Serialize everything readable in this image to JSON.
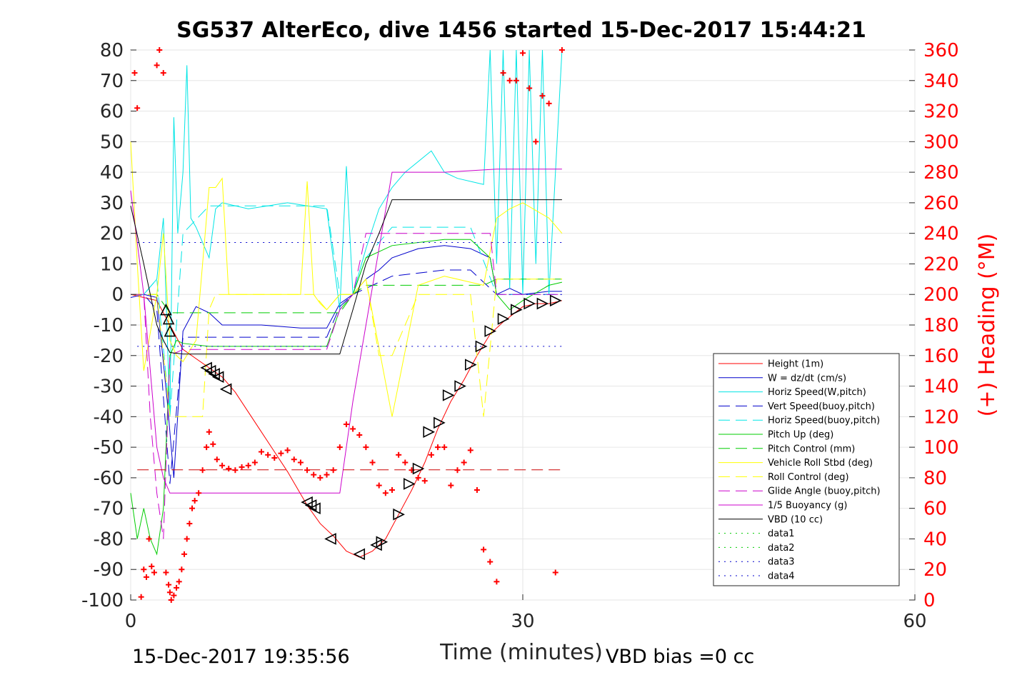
{
  "chart_data": {
    "type": "line",
    "title": "SG537 AlterEco, dive 1456 started 15-Dec-2017 15:44:21",
    "xlabel": "Time (minutes)",
    "ylabel_right": "(+) Heading (°M)",
    "xlim": [
      0,
      60
    ],
    "ylim": [
      -100,
      80
    ],
    "ylim_right": [
      0,
      360
    ],
    "x_ticks": [
      "0",
      "30",
      "60"
    ],
    "y_ticks": [
      "80",
      "70",
      "60",
      "50",
      "40",
      "30",
      "20",
      "10",
      "0",
      "-10",
      "-20",
      "-30",
      "-40",
      "-50",
      "-60",
      "-70",
      "-80",
      "-90",
      "-100"
    ],
    "y_right_ticks": [
      "360",
      "340",
      "320",
      "300",
      "280",
      "260",
      "240",
      "220",
      "200",
      "180",
      "160",
      "140",
      "120",
      "100",
      "80",
      "60",
      "40",
      "20",
      "0"
    ],
    "grid": true,
    "legend_position": "bottom-right",
    "footer_left": "15-Dec-2017 19:35:56",
    "footer_right": "VBD bias =0 cc",
    "series": [
      {
        "name": "Height (1m)",
        "color": "#ff0000",
        "dash": "solid",
        "x": [
          0,
          1,
          2,
          3,
          4,
          5,
          6,
          7,
          8,
          10,
          12,
          13.5,
          14.5,
          15.5,
          16.5,
          17.5,
          18.5,
          19.5,
          20.5,
          21.5,
          22.5,
          23.5,
          24.5,
          25.5,
          26.5,
          27.5,
          28.5,
          30,
          31,
          32,
          33
        ],
        "y": [
          0,
          -1,
          -2,
          -10,
          -18,
          -21,
          -24,
          -27,
          -32,
          -45,
          -58,
          -69,
          -75,
          -79,
          -84,
          -86,
          -84,
          -80,
          -72,
          -64,
          -55,
          -44,
          -35,
          -28,
          -20,
          -13,
          -9,
          -4,
          -3,
          -3,
          -2
        ]
      },
      {
        "name": "W = dz/dt (cm/s)",
        "color": "#0000cc",
        "dash": "solid",
        "x": [
          0,
          1,
          2,
          2.8,
          3.3,
          4,
          5,
          6,
          7,
          10,
          13,
          15,
          16,
          17,
          18,
          19,
          20,
          22,
          24,
          26,
          27.5,
          28,
          29,
          30,
          32,
          33
        ],
        "y": [
          -1,
          0,
          -1,
          -35,
          -60,
          -12,
          -4,
          -6,
          -10,
          -10,
          -11,
          -11,
          -3,
          0,
          5,
          8,
          12,
          15,
          16,
          15,
          12,
          0,
          2,
          0,
          1,
          1
        ]
      },
      {
        "name": "Horiz Speed(W,pitch)",
        "color": "#00e5e5",
        "dash": "solid",
        "x": [
          0,
          1,
          2,
          2.5,
          3,
          3.3,
          3.6,
          4,
          4.3,
          4.6,
          5,
          6,
          6.5,
          7,
          9,
          12,
          15,
          16,
          16.5,
          17,
          18,
          19,
          20,
          21,
          23,
          24,
          25,
          27,
          27.5,
          28,
          28.5,
          29,
          29.5,
          30,
          30.5,
          31,
          31.5,
          32,
          33
        ],
        "y": [
          0,
          0,
          5,
          25,
          -40,
          58,
          20,
          40,
          75,
          25,
          22,
          12,
          28,
          30,
          28,
          30,
          28,
          -5,
          42,
          0,
          15,
          28,
          35,
          40,
          47,
          40,
          38,
          36,
          80,
          10,
          80,
          2,
          80,
          0,
          80,
          10,
          80,
          0,
          80
        ]
      },
      {
        "name": "Vert Speed(buoy,pitch)",
        "color": "#0000cc",
        "dash": "longdash",
        "x": [
          0,
          1,
          2,
          3,
          4,
          6,
          8,
          10,
          12,
          15,
          16,
          17,
          18,
          20,
          24,
          26,
          28,
          30,
          33
        ],
        "y": [
          0,
          0,
          -5,
          -62,
          -14,
          -14,
          -14,
          -14,
          -14,
          -14,
          -4,
          0,
          2,
          6,
          8,
          8,
          0,
          0,
          0
        ]
      },
      {
        "name": "Horiz Speed(buoy,pitch)",
        "color": "#00e5e5",
        "dash": "longdash",
        "x": [
          0,
          1,
          2,
          3,
          4,
          6,
          8,
          10,
          12,
          15,
          16,
          17,
          18,
          20,
          24,
          26,
          28,
          30,
          33
        ],
        "y": [
          0,
          0,
          5,
          -40,
          20,
          29,
          29,
          29,
          29,
          29,
          0,
          0,
          12,
          22,
          22,
          22,
          0,
          0,
          0
        ]
      },
      {
        "name": "Pitch Up (deg)",
        "color": "#00cc00",
        "dash": "solid",
        "x": [
          0,
          0.5,
          1,
          1.5,
          2,
          2.5,
          3,
          3.5,
          4,
          6,
          8,
          10,
          12,
          15,
          16,
          17,
          18,
          20,
          24,
          26,
          27.5,
          28,
          29,
          30,
          32,
          33
        ],
        "y": [
          -65,
          -80,
          -70,
          -80,
          -85,
          -70,
          -20,
          -15,
          -16,
          -17,
          -17,
          -17,
          -17,
          -17,
          -5,
          0,
          12,
          16,
          18,
          18,
          12,
          0,
          -5,
          -2,
          3,
          4
        ]
      },
      {
        "name": "Pitch Control (mm)",
        "color": "#00cc00",
        "dash": "longdash",
        "x": [
          0,
          2,
          2.5,
          3,
          6,
          15,
          16,
          17,
          18,
          20,
          27,
          28,
          33
        ],
        "y": [
          0,
          0,
          -3,
          -6,
          -6,
          -6,
          -6,
          0,
          3,
          3,
          3,
          5,
          5
        ]
      },
      {
        "name": "Vehicle Roll Stbd (deg)",
        "color": "#ffff00",
        "dash": "solid",
        "x": [
          0,
          0.5,
          1,
          2,
          2.5,
          3,
          3.5,
          4,
          5,
          6,
          6.5,
          7,
          7.5,
          8,
          10,
          13,
          13.5,
          14,
          14.5,
          15,
          16,
          17,
          18,
          20,
          22,
          24,
          26,
          27,
          28,
          29,
          30,
          32,
          33
        ],
        "y": [
          50,
          10,
          -25,
          0,
          20,
          -15,
          -20,
          -22,
          -15,
          35,
          35,
          38,
          0,
          0,
          0,
          0,
          37,
          0,
          -3,
          -5,
          0,
          0,
          5,
          -40,
          3,
          6,
          4,
          3,
          25,
          28,
          30,
          25,
          20
        ]
      },
      {
        "name": "Roll Control (deg)",
        "color": "#ffff00",
        "dash": "longdash",
        "x": [
          0,
          2,
          2.5,
          3,
          3.5,
          5,
          5.5,
          6,
          6.5,
          14,
          15,
          16,
          17,
          18,
          19,
          20,
          22,
          24,
          26,
          27,
          28,
          33
        ],
        "y": [
          0,
          0,
          -20,
          -40,
          -40,
          -40,
          -40,
          -5,
          0,
          0,
          -5,
          0,
          0,
          5,
          -20,
          -20,
          0,
          0,
          0,
          -40,
          5,
          5
        ]
      },
      {
        "name": "Glide Angle (buoy,pitch)",
        "color": "#cc00cc",
        "dash": "longdash",
        "x": [
          0,
          1,
          1.5,
          2,
          2.5,
          3,
          4,
          6,
          8,
          10,
          12,
          15,
          16,
          17,
          18,
          20,
          24,
          26,
          27.5,
          28,
          33
        ],
        "y": [
          0,
          0,
          -40,
          -65,
          -80,
          -20,
          -18,
          -18,
          -18,
          -18,
          -18,
          -18,
          -5,
          0,
          20,
          20,
          20,
          20,
          20,
          0,
          0
        ]
      },
      {
        "name": "1/5 Buoyancy (g)",
        "color": "#cc00cc",
        "dash": "solid",
        "x": [
          0,
          1,
          2,
          2.5,
          3,
          4,
          6,
          8,
          10,
          12,
          14,
          15,
          16,
          17,
          18,
          19,
          20,
          24,
          28,
          33
        ],
        "y": [
          34,
          0,
          -50,
          -60,
          -65,
          -65,
          -65,
          -65,
          -65,
          -65,
          -65,
          -65,
          -65,
          -35,
          -10,
          15,
          40,
          40,
          41,
          41
        ]
      },
      {
        "name": "VBD (10 cc)",
        "color": "#000000",
        "dash": "solid",
        "x": [
          0,
          1,
          2,
          2.5,
          3,
          4,
          6,
          8,
          10,
          12,
          14,
          15,
          16,
          17,
          18,
          19,
          20,
          22,
          24,
          28,
          33
        ],
        "y": [
          29,
          10,
          -10,
          -15,
          -19,
          -19.5,
          -19.5,
          -19.5,
          -19.5,
          -19.5,
          -19.5,
          -19.5,
          -19.5,
          -5,
          10,
          20,
          31,
          31,
          31,
          31,
          31
        ]
      },
      {
        "name": "data1",
        "color": "#00cc00",
        "dash": "dot",
        "x": [],
        "y": []
      },
      {
        "name": "data2",
        "color": "#00cc00",
        "dash": "dot",
        "x": [],
        "y": []
      },
      {
        "name": "data3",
        "color": "#0000cc",
        "dash": "dot",
        "x": [
          0.5,
          33
        ],
        "y": [
          17,
          17
        ]
      },
      {
        "name": "data4",
        "color": "#0000cc",
        "dash": "dot",
        "x": [
          0.5,
          33
        ],
        "y": [
          -17,
          -17
        ]
      }
    ],
    "reference_line": {
      "color": "#cc0000",
      "dash": "longdash",
      "x": [
        0.5,
        33
      ],
      "y": [
        -57.4,
        -57.4
      ]
    },
    "heading_points": {
      "color": "#ff0000",
      "x": [
        0.3,
        0.5,
        0.8,
        1.0,
        1.2,
        1.4,
        1.6,
        1.8,
        2.0,
        2.2,
        2.5,
        2.7,
        2.9,
        3.0,
        3.1,
        3.3,
        3.5,
        3.7,
        3.9,
        4.1,
        4.3,
        4.5,
        4.7,
        4.9,
        5.2,
        5.5,
        5.8,
        6.0,
        6.3,
        6.6,
        7.0,
        7.5,
        8.0,
        8.5,
        9.0,
        9.5,
        10.0,
        10.5,
        11.0,
        11.5,
        12.0,
        12.5,
        13.0,
        13.5,
        14.0,
        14.5,
        15.0,
        15.5,
        16.0,
        16.5,
        17.0,
        17.5,
        18.0,
        18.5,
        19.0,
        19.5,
        20.0,
        20.5,
        21.0,
        21.5,
        22.0,
        22.5,
        23.0,
        23.5,
        24.0,
        24.5,
        25.0,
        25.5,
        26.0,
        26.5,
        27.0,
        27.5,
        28.0,
        28.5,
        29.0,
        29.5,
        30.0,
        30.5,
        31.0,
        31.5,
        32.0,
        32.5,
        33.0
      ],
      "y": [
        345,
        322,
        2,
        20,
        15,
        40,
        22,
        18,
        350,
        360,
        345,
        18,
        10,
        5,
        0,
        3,
        8,
        12,
        20,
        30,
        40,
        50,
        60,
        65,
        70,
        85,
        100,
        110,
        102,
        92,
        88,
        86,
        85,
        87,
        88,
        90,
        97,
        95,
        93,
        96,
        98,
        92,
        90,
        85,
        82,
        80,
        82,
        85,
        100,
        115,
        112,
        108,
        100,
        90,
        75,
        70,
        72,
        95,
        90,
        85,
        80,
        78,
        95,
        100,
        100,
        75,
        85,
        90,
        98,
        72,
        33,
        25,
        12,
        345,
        340,
        340,
        358,
        335,
        300,
        330,
        325,
        18,
        365
      ]
    },
    "markers": {
      "color": "#000000",
      "descent_x": [
        2.7,
        2.9,
        3.0,
        5.8,
        6.1,
        6.4,
        6.7,
        7.3,
        13.5,
        13.8,
        14.1,
        15.3,
        17.5,
        18.8
      ],
      "descent_y": [
        -5,
        -8,
        -12,
        -24,
        -25,
        -26,
        -27,
        -31,
        -68,
        -69,
        -70,
        -80,
        -85,
        -82
      ],
      "ascent_x": [
        19.2,
        20.5,
        21.3,
        22.0,
        22.8,
        23.6,
        24.3,
        25.2,
        26.0,
        26.8,
        27.5,
        28.5,
        29.5,
        30.5,
        31.5,
        32.5
      ],
      "ascent_y": [
        -81,
        -72,
        -62,
        -57,
        -45,
        -42,
        -33,
        -30,
        -23,
        -17,
        -12,
        -8,
        -5,
        -3,
        -3,
        -2
      ]
    }
  }
}
